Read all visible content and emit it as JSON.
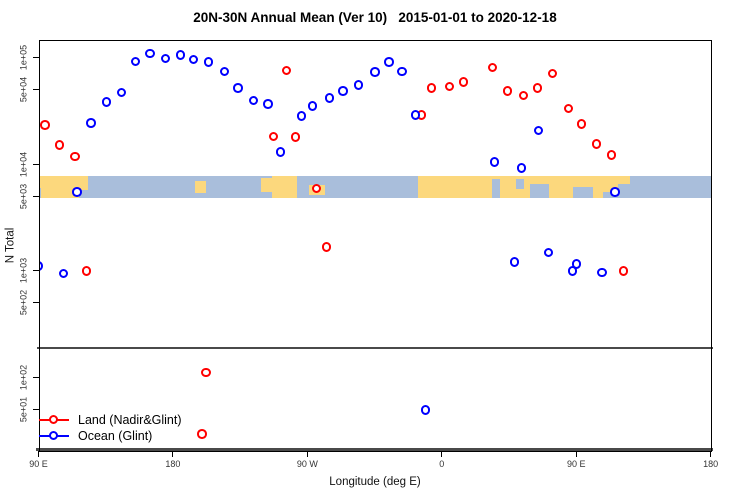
{
  "title": "20N-30N Annual Mean (Ver 10)   2015-01-01 to 2020-12-18",
  "legend": {
    "items": [
      {
        "label": "Land (Nadir&Glint)",
        "color": "#ff0000"
      },
      {
        "label": "Ocean (Glint)",
        "color": "#0000ff"
      }
    ]
  },
  "chart_data": {
    "type": "scatter",
    "title": "20N-30N Annual Mean (Ver 10)   2015-01-01 to 2020-12-18",
    "xlabel": "Longitude (deg E)",
    "ylabel": "N Total",
    "y_scale": "log",
    "ylim": [
      20,
      150000
    ],
    "x_axis": {
      "note": "axis starts at 90E and runs 450 degrees eastward (data 90E-180E plotted twice)",
      "span_deg": 450,
      "ticks_deg": [
        0,
        90,
        180,
        270,
        360,
        450
      ],
      "tick_labels": [
        "90 E",
        "180",
        "90 W",
        "0",
        "90 E",
        "180"
      ]
    },
    "y_ticks": [
      {
        "value": 100000,
        "label": "1e+05"
      },
      {
        "value": 50000,
        "label": "5e+04"
      },
      {
        "value": 10000,
        "label": "1e+04"
      },
      {
        "value": 5000,
        "label": "5e+03"
      },
      {
        "value": 1000,
        "label": "1e+03"
      },
      {
        "value": 500,
        "label": "5e+02"
      },
      {
        "value": 100,
        "label": "1e+02"
      },
      {
        "value": 50,
        "label": "5e+01"
      }
    ],
    "threshold_line_value": 190,
    "series": [
      {
        "name": "Land (Nadir&Glint)",
        "color": "#ff0000",
        "points": [
          [
            5,
            22900
          ],
          [
            14.4,
            14900
          ],
          [
            25.1,
            11700
          ],
          [
            157.7,
            18000
          ],
          [
            166.4,
            75000
          ],
          [
            172.4,
            17700
          ],
          [
            186.5,
            5860
          ],
          [
            193.2,
            1640
          ],
          [
            256.8,
            28400
          ],
          [
            263.5,
            50900
          ],
          [
            275.5,
            53100
          ],
          [
            284.9,
            57900
          ],
          [
            304.3,
            80000
          ],
          [
            314.4,
            47700
          ],
          [
            325.1,
            43700
          ],
          [
            334.4,
            50900
          ],
          [
            344.5,
            70300
          ],
          [
            355.2,
            33000
          ],
          [
            363.9,
            23400
          ],
          [
            373.9,
            15200
          ],
          [
            384,
            12000
          ],
          [
            32.5,
            977
          ],
          [
            392,
            977
          ],
          [
            112.8,
            110
          ],
          [
            110.1,
            28.9
          ]
        ]
      },
      {
        "name": "Ocean (Glint)",
        "color": "#0000ff",
        "points": [
          [
            35.8,
            23900
          ],
          [
            45.9,
            37600
          ],
          [
            55.9,
            46600
          ],
          [
            65.3,
            91100
          ],
          [
            75.3,
            108000
          ],
          [
            85.4,
            97200
          ],
          [
            95.4,
            104000
          ],
          [
            104.1,
            95100
          ],
          [
            114.2,
            89200
          ],
          [
            124.9,
            73400
          ],
          [
            134.2,
            50900
          ],
          [
            144.3,
            39200
          ],
          [
            154.3,
            36000
          ],
          [
            162.4,
            12800
          ],
          [
            176.4,
            27800
          ],
          [
            183.8,
            34500
          ],
          [
            195.2,
            41000
          ],
          [
            204.5,
            47700
          ],
          [
            214.6,
            54300
          ],
          [
            225.9,
            71900
          ],
          [
            235.3,
            89200
          ],
          [
            244,
            73400
          ],
          [
            252.8,
            28400
          ],
          [
            305.7,
            10300
          ],
          [
            323.7,
            9040
          ],
          [
            335.1,
            20500
          ],
          [
            26.4,
            5380
          ],
          [
            386.6,
            5380
          ],
          [
            0,
            1090
          ],
          [
            17.1,
            935
          ],
          [
            319,
            1190
          ],
          [
            341.8,
            1470
          ],
          [
            357.9,
            977
          ],
          [
            360.5,
            1140
          ],
          [
            377.9,
            955
          ],
          [
            259.5,
            48.5
          ]
        ]
      }
    ],
    "map_band": {
      "value_top": 7800,
      "value_bottom": 4800,
      "ocean_color": "#a9bedb",
      "land_color": "#fcd87d",
      "land_segments_deg": [
        [
          0,
          27,
          0,
          1
        ],
        [
          27,
          33,
          0,
          0.65
        ],
        [
          104.5,
          112,
          0.25,
          0.75
        ],
        [
          149,
          156,
          0.1,
          0.7
        ],
        [
          156,
          173,
          0,
          1
        ],
        [
          181,
          192,
          0.4,
          0.85
        ],
        [
          254,
          396,
          0,
          1
        ]
      ],
      "ocean_overlays_deg": [
        [
          0,
          2,
          0.55,
          1
        ],
        [
          303.5,
          309,
          0.15,
          1
        ],
        [
          319.5,
          325,
          0.15,
          0.6
        ],
        [
          329,
          342,
          0.35,
          1
        ],
        [
          358,
          371,
          0.5,
          1
        ],
        [
          378,
          396,
          0.7,
          1
        ],
        [
          388,
          396,
          0.35,
          1
        ]
      ]
    }
  }
}
